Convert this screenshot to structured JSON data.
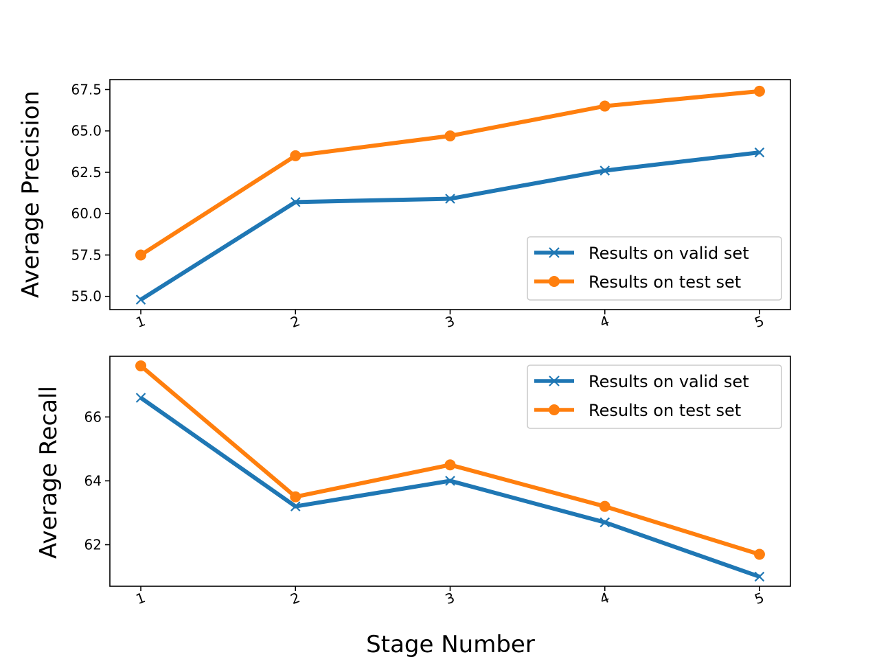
{
  "colors": {
    "valid": "#1f77b4",
    "test": "#ff7f0e"
  },
  "chart_data": [
    {
      "type": "line",
      "x": [
        1,
        2,
        3,
        4,
        5
      ],
      "xticks": [
        "1",
        "2",
        "3",
        "4",
        "5"
      ],
      "xlabel": "",
      "ylabel": "Average Precision",
      "ylim": [
        54.2,
        68.1
      ],
      "yticks": [
        "55.0",
        "57.5",
        "60.0",
        "62.5",
        "65.0",
        "67.5"
      ],
      "ytick_values": [
        55.0,
        57.5,
        60.0,
        62.5,
        65.0,
        67.5
      ],
      "legend_position": "lower-right",
      "series": [
        {
          "name": "Results on valid set",
          "marker": "x",
          "values": [
            54.8,
            60.7,
            60.9,
            62.6,
            63.7
          ]
        },
        {
          "name": "Results on test set",
          "marker": "o",
          "values": [
            57.5,
            63.5,
            64.7,
            66.5,
            67.4
          ]
        }
      ]
    },
    {
      "type": "line",
      "x": [
        1,
        2,
        3,
        4,
        5
      ],
      "xticks": [
        "1",
        "2",
        "3",
        "4",
        "5"
      ],
      "xlabel": "Stage Number",
      "ylabel": "Average Recall",
      "ylim": [
        60.7,
        67.9
      ],
      "yticks": [
        "62",
        "64",
        "66"
      ],
      "ytick_values": [
        62,
        64,
        66
      ],
      "legend_position": "upper-right",
      "series": [
        {
          "name": "Results on valid set",
          "marker": "x",
          "values": [
            66.6,
            63.2,
            64.0,
            62.7,
            61.0
          ]
        },
        {
          "name": "Results on test set",
          "marker": "o",
          "values": [
            67.6,
            63.5,
            64.5,
            63.2,
            61.7
          ]
        }
      ]
    }
  ]
}
